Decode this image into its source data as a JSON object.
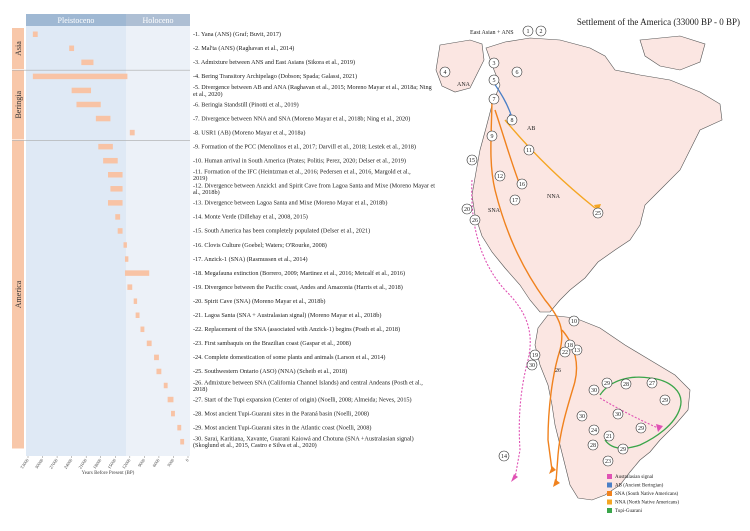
{
  "timeline": {
    "period_headers": [
      "Pleistoceno",
      "Holoceno"
    ],
    "regions": [
      {
        "name": "Asia",
        "from": 1,
        "to": 3
      },
      {
        "name": "Beringia",
        "from": 4,
        "to": 8
      },
      {
        "name": "America",
        "from": 9,
        "to": 30
      }
    ],
    "x_ticks": [
      "33000",
      "30000",
      "27000",
      "24000",
      "21000",
      "18000",
      "15000",
      "12000",
      "9000",
      "6000",
      "3000",
      "0"
    ],
    "x_axis_label": "Years Before Present (BP)",
    "colors": {
      "pleistocene": "#dfe9f5",
      "holocene": "#ecf1f8",
      "header": "#9fb8d3",
      "bar": "#f8c3a5",
      "region": "#f8c7a9"
    }
  },
  "events": [
    {
      "n": 1,
      "label": "-1. Yana (ANS) (Graf; Buvit, 2017)",
      "bars": [
        [
          32000,
          31000
        ]
      ]
    },
    {
      "n": 2,
      "label": "-2. Mal'ta (ANS) (Raghavan et al., 2014)",
      "bars": [
        [
          24500,
          23500
        ]
      ]
    },
    {
      "n": 3,
      "label": "-3. Admixture between ANS and East Asians (Sikora et al., 2019)",
      "bars": [
        [
          22000,
          19500
        ]
      ]
    },
    {
      "n": 4,
      "label": "-4. Bering Transitory Archipelago (Dobson; Spada; Galassi, 2021)",
      "bars": [
        [
          32000,
          12500
        ]
      ]
    },
    {
      "n": 5,
      "label": "-5. Divergence between AB and ANA (Raghavan et al., 2015; Moreno Mayar et al., 2018a; Ning et al., 2020)",
      "bars": [
        [
          24000,
          20000
        ]
      ]
    },
    {
      "n": 6,
      "label": "-6. Beringia Standstill (Pinotti et al., 2019)",
      "bars": [
        [
          23000,
          18000
        ]
      ]
    },
    {
      "n": 7,
      "label": "-7. Divergence between NNA and SNA (Moreno Mayar et al., 2018b; Ning et al., 2020)",
      "bars": [
        [
          19000,
          16000
        ]
      ]
    },
    {
      "n": 8,
      "label": "-8. USR1 (AB) (Moreno Mayar et al., 2018a)",
      "bars": [
        [
          12000,
          11000
        ]
      ]
    },
    {
      "n": 9,
      "label": "-9. Formation of the PCC (Menolinos et al., 2017; Darvill et al., 2018; Lestek et al., 2018)",
      "bars": [
        [
          18500,
          15500
        ]
      ]
    },
    {
      "n": 10,
      "label": "-10. Human arrival in South America (Prates; Politis; Perez, 2020; Delser et al., 2019)",
      "bars": [
        [
          17500,
          14500
        ]
      ]
    },
    {
      "n": 11,
      "label": "-11. Formation of the IFC (Heintzman et al., 2016; Pedersen et al., 2016, Margold et al., 2019)",
      "bars": [
        [
          16500,
          13500
        ]
      ]
    },
    {
      "n": 12,
      "label": "-12. Divergence between Anzick1 and Spirit Cave from Lagoa Santa and Mixe (Moreno Mayar et al., 2018b)",
      "bars": [
        [
          16000,
          13500
        ]
      ]
    },
    {
      "n": 13,
      "label": "-13. Divergence between Lagoa Santa and Mixe (Moreno Mayar et al., 2018b)",
      "bars": [
        [
          16500,
          13500
        ]
      ]
    },
    {
      "n": 14,
      "label": "-14. Monte Verde (Dillehay et al., 2008, 2015)",
      "bars": [
        [
          15000,
          14000
        ]
      ]
    },
    {
      "n": 15,
      "label": "-15. South America has been completely populated (Delser et al., 2021)",
      "bars": [
        [
          14500,
          13500
        ]
      ]
    },
    {
      "n": 16,
      "label": "-16. Clovis Culture (Goebel; Waters; O'Rourke, 2008)",
      "bars": [
        [
          13300,
          12600
        ]
      ]
    },
    {
      "n": 17,
      "label": "-17. Anzick-1 (SNA) (Rasmussen et al., 2014)",
      "bars": [
        [
          13000,
          12300
        ]
      ]
    },
    {
      "n": 18,
      "label": "-18. Megafauna extinction (Borrero, 2009; Martinez et al., 2016; Metcalf et al., 2016)",
      "bars": [
        [
          13000,
          8000
        ]
      ]
    },
    {
      "n": 19,
      "label": "-19. Divergence between the Pacific coast, Andes and Amazonia (Harris et al., 2018)",
      "bars": [
        [
          12500,
          11500
        ]
      ]
    },
    {
      "n": 20,
      "label": "-20. Spirit Cave (SNA) (Moreno Mayar et al., 2018b)",
      "bars": [
        [
          11200,
          10500
        ]
      ]
    },
    {
      "n": 21,
      "label": "-21. Lagoa Santa (SNA + Australasian signal) (Moreno Mayar et al., 2018b)",
      "bars": [
        [
          10800,
          10000
        ]
      ]
    },
    {
      "n": 22,
      "label": "-22. Replacement of the SNA (associated with Anzick-1) begins (Posth et al., 2018)",
      "bars": [
        [
          9800,
          9000
        ]
      ]
    },
    {
      "n": 23,
      "label": "-23. First sambaquis on the Brazilian coast (Gaspar et al., 2008)",
      "bars": [
        [
          8500,
          7500
        ]
      ]
    },
    {
      "n": 24,
      "label": "-24. Complete domestication of some plants and animals (Larson et al., 2014)",
      "bars": [
        [
          7000,
          6000
        ]
      ]
    },
    {
      "n": 25,
      "label": "-25. Southwestern Ontario (ASO) (NNA) (Scheib et al., 2018)",
      "bars": [
        [
          6500,
          5500
        ]
      ]
    },
    {
      "n": 26,
      "label": "-26. Admixture between SNA (California Channel Islands) and central Andeans (Posth et al., 2018)",
      "bars": [
        [
          5000,
          4200
        ]
      ]
    },
    {
      "n": 27,
      "label": "-27. Start of the Tupi expansion (Center of origin) (Noelli, 2008; Almeida; Neves, 2015)",
      "bars": [
        [
          4200,
          3000
        ]
      ]
    },
    {
      "n": 28,
      "label": "-28. Most ancient Tupi-Guarani sites in the Paraná basin (Noelli, 2008)",
      "bars": [
        [
          3500,
          2700
        ]
      ]
    },
    {
      "n": 29,
      "label": "-29. Most ancient Tupi-Guarani sites in the Atlantic coast (Noelli, 2008)",
      "bars": [
        [
          2200,
          1400
        ]
      ]
    },
    {
      "n": 30,
      "label": "-30. Sarai, Karitiana, Xavante, Guarani Kaiowá and Chotuna (SNA +Australasian signal) (Skoglund et al., 2015, Castro e Silva et al., 2020)",
      "bars": [
        [
          1600,
          800
        ]
      ]
    }
  ],
  "map": {
    "title": "Settlement of the America (33000 BP - 0 BP)",
    "labels": {
      "east_asian": "East Asian + ANS",
      "ana": "ANA",
      "ab": "AB",
      "nna": "NNA",
      "sna": "SNA",
      "lower26": "26"
    },
    "legend": [
      {
        "label": "Australasian signal",
        "color": "#e052b4"
      },
      {
        "label": "AB (Ancient Beringian)",
        "color": "#4a7fc6"
      },
      {
        "label": "SNA (South Native Americans)",
        "color": "#f0821e"
      },
      {
        "label": "NNA (North Native Americans)",
        "color": "#f5a623"
      },
      {
        "label": "Tupi-Guarani",
        "color": "#3aa54a"
      }
    ],
    "colors": {
      "land": "#fbe6e2",
      "coast": "#555555",
      "sna": "#f0821e",
      "nna": "#f5a623",
      "ab": "#4a7fc6",
      "aus": "#e052b4",
      "tupi": "#3aa54a"
    }
  }
}
